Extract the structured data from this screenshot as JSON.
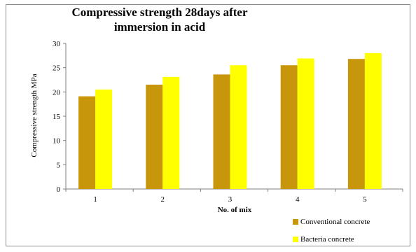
{
  "chart_data": {
    "type": "bar",
    "title_lines": [
      "Compressive strength 28days after",
      "immersion in acid"
    ],
    "xlabel": "No. of mix",
    "ylabel": "Compressive strength MPa",
    "categories": [
      "1",
      "2",
      "3",
      "4",
      "5"
    ],
    "ylim": [
      0,
      30
    ],
    "yticks": [
      "0",
      "5",
      "10",
      "15",
      "20",
      "25",
      "30"
    ],
    "grid": false,
    "legend_position": "bottom-right",
    "series": [
      {
        "name": "Conventional concrete",
        "color": "#c8960a",
        "values": [
          19.1,
          21.5,
          23.6,
          25.5,
          26.8
        ]
      },
      {
        "name": "Bacteria concrete",
        "color": "#ffff00",
        "values": [
          20.5,
          23.1,
          25.5,
          26.9,
          28.0
        ]
      }
    ]
  }
}
